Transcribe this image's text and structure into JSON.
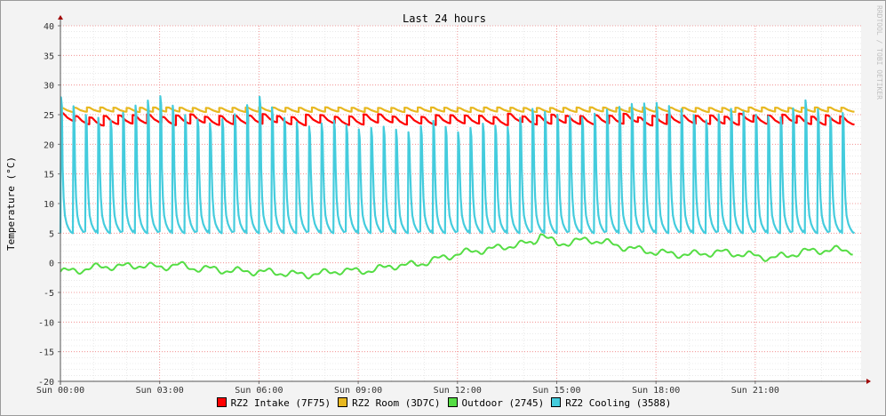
{
  "chart_data": {
    "type": "line",
    "title": "Last 24 hours",
    "ylabel": "Temperature (°C)",
    "xlabel": "",
    "watermark": "RRDTOOL / TOBI OETIKER",
    "ylim": [
      -20,
      40
    ],
    "yticks": [
      "40",
      "35",
      "30",
      "25",
      "20",
      "15",
      "10",
      "5",
      "0",
      "-5",
      "-10",
      "-15",
      "-20"
    ],
    "xticks": [
      "Sun 00:00",
      "Sun 03:00",
      "Sun 06:00",
      "Sun 09:00",
      "Sun 12:00",
      "Sun 15:00",
      "Sun 18:00",
      "Sun 21:00"
    ],
    "xrange_hours": [
      0,
      24.2
    ],
    "grid": true,
    "legend_position": "bottom",
    "series": [
      {
        "name": "RZ2 Intake (7F75)",
        "color": "#ff0000",
        "pattern": "sawtooth",
        "x": [
          0,
          0.5,
          1,
          1.5,
          2,
          2.5,
          3,
          3.5,
          4,
          4.5,
          5,
          5.5,
          6,
          6.5,
          7,
          7.5,
          8,
          8.5,
          9,
          9.5,
          10,
          10.5,
          11,
          11.5,
          12,
          12.5,
          13,
          13.5,
          14,
          14.5,
          15,
          15.5,
          16,
          16.5,
          17,
          17.5,
          18,
          18.5,
          19,
          19.5,
          20,
          20.5,
          21,
          21.5,
          22,
          22.5,
          23,
          23.5,
          24
        ],
        "y": [
          24.6,
          24.0,
          23.8,
          24.3,
          24.1,
          24.5,
          23.9,
          24.2,
          24.4,
          23.8,
          24.3,
          24.0,
          24.5,
          24.1,
          23.9,
          24.4,
          24.2,
          23.8,
          24.3,
          24.5,
          24.0,
          24.2,
          23.9,
          24.4,
          24.1,
          24.3,
          23.8,
          24.5,
          24.0,
          24.2,
          24.4,
          23.9,
          24.3,
          24.1,
          24.5,
          23.8,
          24.2,
          24.4,
          24.0,
          24.3,
          23.9,
          24.5,
          24.1,
          24.2,
          24.4,
          23.8,
          24.3,
          24.0,
          24.2
        ]
      },
      {
        "name": "RZ2 Room (3D7C)",
        "color": "#e8b820",
        "pattern": "sawtooth",
        "x": [
          0,
          1,
          2,
          3,
          4,
          5,
          6,
          7,
          8,
          9,
          10,
          11,
          12,
          13,
          14,
          15,
          16,
          17,
          18,
          19,
          20,
          21,
          22,
          23,
          24
        ],
        "y": [
          25.8,
          25.9,
          25.8,
          25.9,
          25.8,
          25.8,
          25.9,
          25.8,
          25.9,
          25.8,
          25.8,
          25.9,
          25.8,
          25.9,
          25.8,
          25.8,
          25.9,
          25.8,
          25.9,
          25.8,
          25.8,
          25.9,
          25.8,
          25.9,
          25.8
        ]
      },
      {
        "name": "Outdoor (2745)",
        "color": "#55dd44",
        "pattern": "smooth",
        "x": [
          0,
          0.5,
          1,
          1.5,
          2,
          2.5,
          3,
          3.5,
          4,
          4.5,
          5,
          5.5,
          6,
          6.5,
          7,
          7.5,
          8,
          8.5,
          9,
          9.5,
          10,
          10.5,
          11,
          11.5,
          12,
          12.5,
          13,
          13.5,
          14,
          14.3,
          14.5,
          15,
          15.5,
          16,
          16.5,
          17,
          17.5,
          18,
          18.5,
          19,
          19.5,
          20,
          20.5,
          21,
          21.5,
          22,
          22.5,
          23,
          23.5,
          24
        ],
        "y": [
          -1.5,
          -1.3,
          -0.8,
          -0.6,
          -0.6,
          -0.4,
          -0.8,
          -0.3,
          -0.9,
          -1.0,
          -1.3,
          -1.4,
          -1.5,
          -1.6,
          -1.9,
          -2.0,
          -1.7,
          -1.3,
          -1.4,
          -1.2,
          -0.5,
          -0.4,
          0.0,
          0.8,
          1.5,
          2.0,
          2.3,
          2.8,
          3.2,
          3.4,
          5.0,
          3.1,
          3.6,
          3.9,
          3.4,
          2.7,
          2.2,
          1.8,
          1.5,
          1.4,
          1.6,
          1.8,
          1.5,
          1.2,
          0.8,
          1.3,
          1.9,
          2.1,
          2.2,
          2.0
        ]
      },
      {
        "name": "RZ2 Cooling (3588)",
        "color": "#44ccdd",
        "pattern": "spiky",
        "cycles": 64,
        "peak_range": [
          21,
          28
        ],
        "trough": 5.0,
        "x": [
          0,
          0.75,
          1.5,
          2.25,
          3,
          3.75,
          4.5,
          5.25,
          6,
          6.75,
          7.5,
          8.25,
          9,
          9.75,
          10.5,
          11.25,
          12,
          12.75,
          13.5,
          14.25,
          15,
          15.75,
          16.5,
          17.25,
          18,
          18.75,
          19.5,
          20.25,
          21,
          21.75,
          22.5,
          23.25,
          24
        ],
        "y": [
          28.0,
          25.0,
          24.0,
          26.5,
          28.2,
          25.0,
          23.5,
          25.0,
          28.1,
          24.5,
          23.0,
          24.0,
          22.5,
          23.0,
          22.0,
          24.0,
          22.0,
          23.5,
          22.8,
          26.0,
          25.0,
          24.5,
          25.8,
          26.8,
          27.0,
          26.0,
          24.0,
          26.0,
          25.0,
          24.5,
          27.5,
          24.5,
          26.0
        ]
      }
    ]
  }
}
